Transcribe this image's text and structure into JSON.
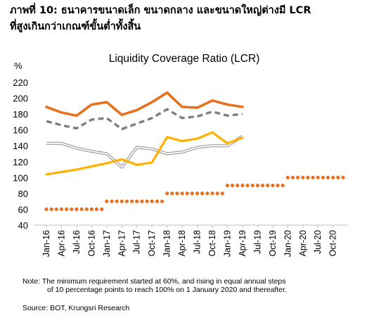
{
  "heading": {
    "line1": "ภาพที่ 10: ธนาคารขนาดเล็ก ขนาดกลาง และขนาดใหญ่ต่างมี LCR",
    "line2": "ที่สูงเกินกว่าเกณฑ์ขั้นต่ำทั้งสิ้น"
  },
  "chart_data": {
    "type": "line",
    "title": "Liquidity Coverage Ratio (LCR)",
    "ylabel": "%",
    "ylim": [
      40,
      220
    ],
    "yticks": [
      40,
      60,
      80,
      100,
      120,
      140,
      160,
      180,
      200,
      220
    ],
    "grid": false,
    "legend": "none",
    "x": [
      "Jan-16",
      "Feb-16",
      "Mar-16",
      "Apr-16",
      "May-16",
      "Jun-16",
      "Jul-16",
      "Aug-16",
      "Sep-16",
      "Oct-16",
      "Nov-16",
      "Dec-16",
      "Jan-17",
      "Feb-17",
      "Mar-17",
      "Apr-17",
      "May-17",
      "Jun-17",
      "Jul-17",
      "Aug-17",
      "Sep-17",
      "Oct-17",
      "Nov-17",
      "Dec-17",
      "Jan-18",
      "Feb-18",
      "Mar-18",
      "Apr-18",
      "May-18",
      "Jun-18",
      "Jul-18",
      "Aug-18",
      "Sep-18",
      "Oct-18",
      "Nov-18",
      "Dec-18",
      "Jan-19",
      "Feb-19",
      "Mar-19",
      "Apr-19",
      "May-19",
      "Jun-19",
      "Jul-19",
      "Aug-19",
      "Sep-19",
      "Oct-19",
      "Nov-19",
      "Dec-19",
      "Jan-20",
      "Feb-20",
      "Mar-20",
      "Apr-20",
      "May-20",
      "Jun-20",
      "Jul-20",
      "Aug-20",
      "Sep-20",
      "Oct-20",
      "Nov-20",
      "Dec-20"
    ],
    "xtick_labels": [
      "Jan-16",
      "Apr-16",
      "Jul-16",
      "Oct-16",
      "Jan-17",
      "Apr-17",
      "Jul-17",
      "Oct-17",
      "Jan-18",
      "Apr-18",
      "Jul-18",
      "Oct-18",
      "Jan-19",
      "Apr-19",
      "Jul-19",
      "Oct-19",
      "Jan-20",
      "Apr-20",
      "Jul-20",
      "Oct-20"
    ],
    "series": [
      {
        "style": "thick-orange",
        "color": "#E8711F",
        "points": [
          [
            "Jan-16",
            189
          ],
          [
            "Apr-16",
            182
          ],
          [
            "Jul-16",
            178
          ],
          [
            "Oct-16",
            192
          ],
          [
            "Jan-17",
            195
          ],
          [
            "Apr-17",
            179
          ],
          [
            "Jul-17",
            185
          ],
          [
            "Oct-17",
            195
          ],
          [
            "Jan-18",
            207
          ],
          [
            "Apr-18",
            189
          ],
          [
            "Jul-18",
            188
          ],
          [
            "Oct-18",
            197
          ],
          [
            "Jan-19",
            192
          ],
          [
            "Apr-19",
            189
          ]
        ]
      },
      {
        "style": "dashed-grey",
        "color": "#808080",
        "points": [
          [
            "Jan-16",
            171
          ],
          [
            "Apr-16",
            166
          ],
          [
            "Jul-16",
            162
          ],
          [
            "Oct-16",
            173
          ],
          [
            "Jan-17",
            175
          ],
          [
            "Apr-17",
            161
          ],
          [
            "Jul-17",
            168
          ],
          [
            "Oct-17",
            175
          ],
          [
            "Jan-18",
            186
          ],
          [
            "Apr-18",
            175
          ],
          [
            "Jul-18",
            177
          ],
          [
            "Oct-18",
            183
          ],
          [
            "Jan-19",
            178
          ],
          [
            "Apr-19",
            180
          ]
        ]
      },
      {
        "style": "double-grey",
        "color": "#9E9E9E",
        "points": [
          [
            "Jan-16",
            143
          ],
          [
            "Apr-16",
            143
          ],
          [
            "Jul-16",
            137
          ],
          [
            "Oct-16",
            133
          ],
          [
            "Jan-17",
            130
          ],
          [
            "Apr-17",
            113
          ],
          [
            "Jul-17",
            138
          ],
          [
            "Oct-17",
            136
          ],
          [
            "Jan-18",
            130
          ],
          [
            "Apr-18",
            132
          ],
          [
            "Jul-18",
            138
          ],
          [
            "Oct-18",
            140
          ],
          [
            "Jan-19",
            140
          ],
          [
            "Apr-19",
            152
          ]
        ]
      },
      {
        "style": "gold",
        "color": "#FFB000",
        "points": [
          [
            "Jan-16",
            104
          ],
          [
            "Apr-16",
            107
          ],
          [
            "Jul-16",
            110
          ],
          [
            "Oct-16",
            114
          ],
          [
            "Jan-17",
            118
          ],
          [
            "Apr-17",
            123
          ],
          [
            "Jul-17",
            116
          ],
          [
            "Oct-17",
            119
          ],
          [
            "Jan-18",
            151
          ],
          [
            "Apr-18",
            146
          ],
          [
            "Jul-18",
            149
          ],
          [
            "Oct-18",
            157
          ],
          [
            "Jan-19",
            143
          ],
          [
            "Apr-19",
            150
          ]
        ]
      },
      {
        "style": "dotted-requirement",
        "color": "#E8711F",
        "points": [
          [
            "Jan-16",
            60
          ],
          [
            "Feb-16",
            60
          ],
          [
            "Mar-16",
            60
          ],
          [
            "Apr-16",
            60
          ],
          [
            "May-16",
            60
          ],
          [
            "Jun-16",
            60
          ],
          [
            "Jul-16",
            60
          ],
          [
            "Aug-16",
            60
          ],
          [
            "Sep-16",
            60
          ],
          [
            "Oct-16",
            60
          ],
          [
            "Nov-16",
            60
          ],
          [
            "Dec-16",
            60
          ],
          [
            "Jan-17",
            70
          ],
          [
            "Feb-17",
            70
          ],
          [
            "Mar-17",
            70
          ],
          [
            "Apr-17",
            70
          ],
          [
            "May-17",
            70
          ],
          [
            "Jun-17",
            70
          ],
          [
            "Jul-17",
            70
          ],
          [
            "Aug-17",
            70
          ],
          [
            "Sep-17",
            70
          ],
          [
            "Oct-17",
            70
          ],
          [
            "Nov-17",
            70
          ],
          [
            "Dec-17",
            70
          ],
          [
            "Jan-18",
            80
          ],
          [
            "Feb-18",
            80
          ],
          [
            "Mar-18",
            80
          ],
          [
            "Apr-18",
            80
          ],
          [
            "May-18",
            80
          ],
          [
            "Jun-18",
            80
          ],
          [
            "Jul-18",
            80
          ],
          [
            "Aug-18",
            80
          ],
          [
            "Sep-18",
            80
          ],
          [
            "Oct-18",
            80
          ],
          [
            "Nov-18",
            80
          ],
          [
            "Dec-18",
            80
          ],
          [
            "Jan-19",
            90
          ],
          [
            "Feb-19",
            90
          ],
          [
            "Mar-19",
            90
          ],
          [
            "Apr-19",
            90
          ],
          [
            "May-19",
            90
          ],
          [
            "Jun-19",
            90
          ],
          [
            "Jul-19",
            90
          ],
          [
            "Aug-19",
            90
          ],
          [
            "Sep-19",
            90
          ],
          [
            "Oct-19",
            90
          ],
          [
            "Nov-19",
            90
          ],
          [
            "Dec-19",
            90
          ],
          [
            "Jan-20",
            100
          ],
          [
            "Feb-20",
            100
          ],
          [
            "Mar-20",
            100
          ],
          [
            "Apr-20",
            100
          ],
          [
            "May-20",
            100
          ],
          [
            "Jun-20",
            100
          ],
          [
            "Jul-20",
            100
          ],
          [
            "Aug-20",
            100
          ],
          [
            "Sep-20",
            100
          ],
          [
            "Oct-20",
            100
          ],
          [
            "Nov-20",
            100
          ],
          [
            "Dec-20",
            100
          ]
        ]
      }
    ]
  },
  "note": {
    "line1": "Note:  The minimum requirement started at 60%, and rising in equal annual steps",
    "line2": "of 10 percentage points to reach 100% on 1 January 2020 and thereafter."
  },
  "source": "Source: BOT, Krungsri Research"
}
